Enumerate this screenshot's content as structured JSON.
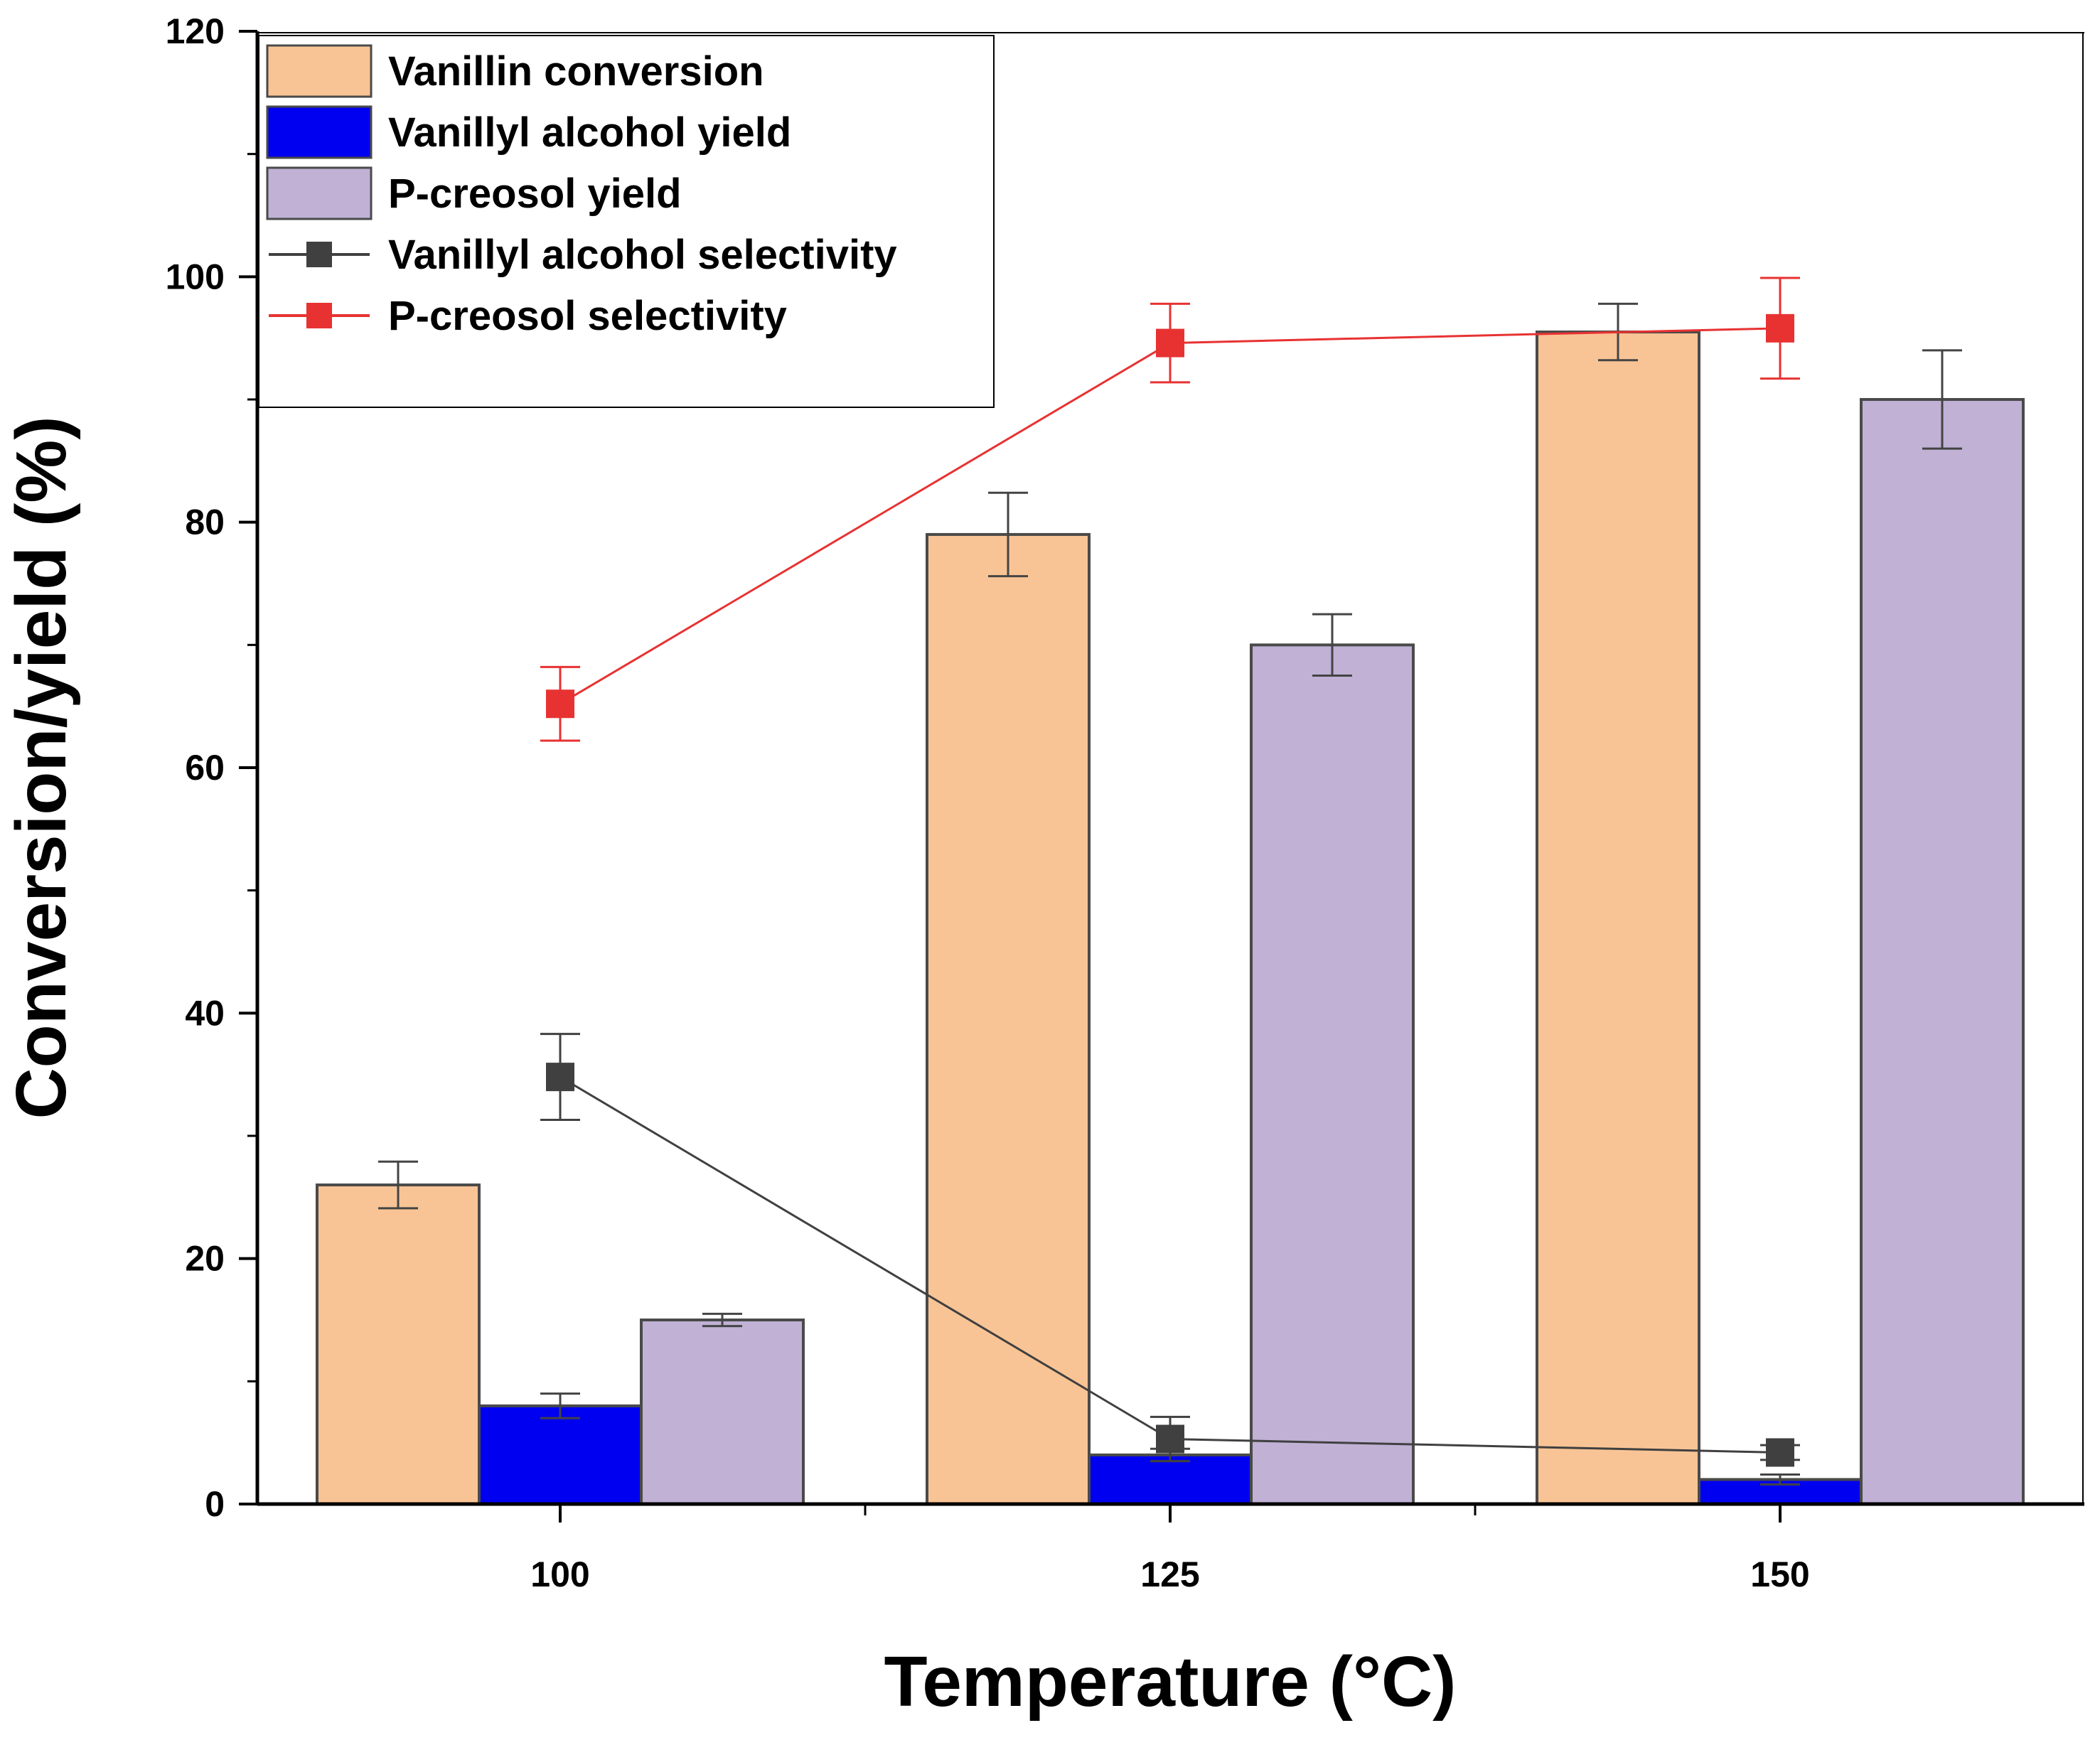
{
  "chart_data": {
    "type": "bar",
    "title": "",
    "xlabel": "Temperature (°C)",
    "ylabel": "Conversion/yield (%)",
    "categories": [
      "100",
      "125",
      "150"
    ],
    "ylim": [
      0,
      120
    ],
    "yticks": [
      0,
      20,
      40,
      60,
      80,
      100,
      120
    ],
    "ytick_labels": [
      "0",
      "20",
      "40",
      "60",
      "80",
      "100",
      "120"
    ],
    "legend_position": "top-left",
    "grid": false,
    "bar_series": [
      {
        "name": "Vanillin conversion",
        "color": "#F9C495",
        "values": [
          26,
          79,
          95.5
        ],
        "errors": [
          1.9,
          3.4,
          2.3
        ]
      },
      {
        "name": "Vanillyl alcohol yield",
        "color": "#0000F0",
        "values": [
          8,
          4,
          2
        ],
        "errors": [
          1.0,
          0.5,
          0.4
        ]
      },
      {
        "name": "P-creosol yield",
        "color": "#C0B1D5",
        "values": [
          15,
          70,
          90
        ],
        "errors": [
          0.5,
          2.5,
          4.0
        ]
      }
    ],
    "line_series": [
      {
        "name": "Vanillyl alcohol selectivity",
        "color": "#404040",
        "marker": "square",
        "values": [
          34.8,
          5.3,
          4.2
        ],
        "errors": [
          3.5,
          1.8,
          0.6
        ]
      },
      {
        "name": "P-creosol selectivity",
        "color": "#E83232",
        "marker": "square",
        "values": [
          65.2,
          94.6,
          95.8
        ],
        "errors": [
          3.0,
          3.2,
          4.1
        ]
      }
    ]
  }
}
